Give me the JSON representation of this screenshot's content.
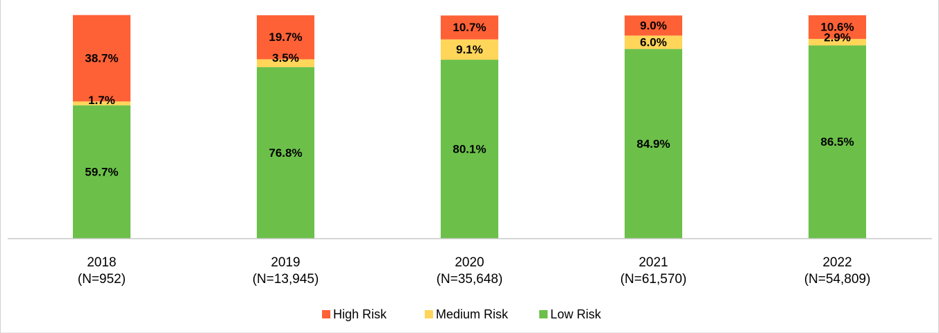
{
  "chart_data": {
    "type": "bar",
    "stacked": true,
    "percent_stacked": true,
    "title": "",
    "xlabel": "",
    "ylabel": "",
    "ylim": [
      0,
      100
    ],
    "grid": false,
    "legend_position": "bottom",
    "categories": [
      [
        "2018",
        "(N=952)"
      ],
      [
        "2019",
        "(N=13,945)"
      ],
      [
        "2020",
        "(N=35,648)"
      ],
      [
        "2021",
        "(N=61,570)"
      ],
      [
        "2022",
        "(N=54,809)"
      ]
    ],
    "series": [
      {
        "name": "Low Risk",
        "color": "#6cc04a",
        "values": [
          59.7,
          76.8,
          80.1,
          84.9,
          86.5
        ],
        "labels": [
          "59.7%",
          "76.8%",
          "80.1%",
          "84.9%",
          "86.5%"
        ]
      },
      {
        "name": "Medium Risk",
        "color": "#ffd55a",
        "values": [
          1.7,
          3.5,
          9.1,
          6.0,
          2.9
        ],
        "labels": [
          "1.7%",
          "3.5%",
          "9.1%",
          "6.0%",
          "2.9%"
        ]
      },
      {
        "name": "High Risk",
        "color": "#ff6136",
        "values": [
          38.7,
          19.7,
          10.7,
          9.0,
          10.6
        ],
        "labels": [
          "38.7%",
          "19.7%",
          "10.7%",
          "9.0%",
          "10.6%"
        ]
      }
    ],
    "legend_order": [
      "High Risk",
      "Medium Risk",
      "Low Risk"
    ]
  }
}
